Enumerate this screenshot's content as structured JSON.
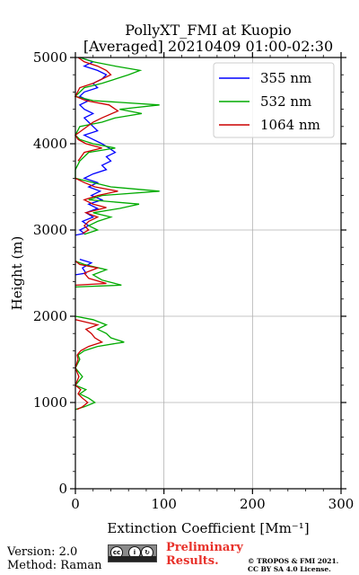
{
  "figure": {
    "title_line1": "PollyXT_FMI at Kuopio",
    "title_line2": "[Averaged] 20210409 01:00-02:30",
    "version_text": "Version: 2.0",
    "method_text": "Method: Raman",
    "preliminary_line1": "Preliminary",
    "preliminary_line2": "Results.",
    "copyright_line1": "© TROPOS & FMI 2021.",
    "copyright_line2": "CC BY SA 4.0 License.",
    "cc_icons": [
      "cc-icon",
      "by-icon",
      "sa-icon"
    ]
  },
  "chart_data": {
    "type": "line",
    "xlabel": "Extinction Coefficient [Mm⁻¹]",
    "ylabel": "Height (m)",
    "xlim": [
      0,
      300
    ],
    "ylim": [
      0,
      5000
    ],
    "xticks": [
      0,
      100,
      200,
      300
    ],
    "yticks": [
      0,
      1000,
      2000,
      3000,
      4000,
      5000
    ],
    "grid": true,
    "legend_position": "top-right",
    "series": [
      {
        "name": "355 nm",
        "color": "#0000ff",
        "points": [
          [
            0,
            2940
          ],
          [
            10,
            2960
          ],
          [
            5,
            3000
          ],
          [
            15,
            3050
          ],
          [
            8,
            3100
          ],
          [
            20,
            3150
          ],
          [
            12,
            3200
          ],
          [
            25,
            3250
          ],
          [
            15,
            3300
          ],
          [
            30,
            3350
          ],
          [
            18,
            3400
          ],
          [
            28,
            3450
          ],
          [
            15,
            3500
          ],
          [
            25,
            3550
          ],
          [
            10,
            3600
          ],
          [
            20,
            3650
          ],
          [
            35,
            3700
          ],
          [
            30,
            3750
          ],
          [
            40,
            3800
          ],
          [
            35,
            3850
          ],
          [
            45,
            3900
          ],
          [
            38,
            3950
          ],
          [
            30,
            4000
          ],
          [
            20,
            4050
          ],
          [
            10,
            4100
          ],
          [
            25,
            4150
          ],
          [
            20,
            4200
          ],
          [
            15,
            4250
          ],
          [
            10,
            4300
          ],
          [
            20,
            4350
          ],
          [
            10,
            4400
          ],
          [
            5,
            4450
          ],
          [
            15,
            4500
          ],
          [
            5,
            4550
          ],
          [
            10,
            4600
          ],
          [
            25,
            4650
          ],
          [
            20,
            4700
          ],
          [
            30,
            4750
          ],
          [
            35,
            4800
          ],
          [
            25,
            4850
          ],
          [
            10,
            4900
          ],
          [
            20,
            4950
          ],
          [
            5,
            5000
          ],
          [
            0,
            2480
          ],
          [
            12,
            2500
          ],
          [
            8,
            2560
          ],
          [
            18,
            2620
          ],
          [
            5,
            2660
          ]
        ]
      },
      {
        "name": "532 nm",
        "color": "#00aa00",
        "points": [
          [
            0,
            920
          ],
          [
            10,
            950
          ],
          [
            22,
            1000
          ],
          [
            15,
            1050
          ],
          [
            5,
            1100
          ],
          [
            12,
            1150
          ],
          [
            0,
            1200
          ],
          [
            8,
            1300
          ],
          [
            0,
            1400
          ],
          [
            5,
            1500
          ],
          [
            3,
            1550
          ],
          [
            10,
            1600
          ],
          [
            25,
            1650
          ],
          [
            55,
            1700
          ],
          [
            40,
            1750
          ],
          [
            35,
            1800
          ],
          [
            25,
            1850
          ],
          [
            35,
            1900
          ],
          [
            20,
            1960
          ],
          [
            0,
            2000
          ],
          [
            0,
            2340
          ],
          [
            52,
            2360
          ],
          [
            30,
            2420
          ],
          [
            20,
            2480
          ],
          [
            35,
            2540
          ],
          [
            10,
            2600
          ],
          [
            0,
            2640
          ],
          [
            10,
            2950
          ],
          [
            25,
            3000
          ],
          [
            15,
            3050
          ],
          [
            25,
            3100
          ],
          [
            40,
            3150
          ],
          [
            20,
            3200
          ],
          [
            50,
            3250
          ],
          [
            72,
            3300
          ],
          [
            15,
            3350
          ],
          [
            30,
            3400
          ],
          [
            95,
            3450
          ],
          [
            40,
            3500
          ],
          [
            20,
            3550
          ],
          [
            0,
            3600
          ],
          [
            0,
            3700
          ],
          [
            5,
            3800
          ],
          [
            15,
            3900
          ],
          [
            45,
            3950
          ],
          [
            20,
            4000
          ],
          [
            5,
            4050
          ],
          [
            0,
            4100
          ],
          [
            5,
            4200
          ],
          [
            30,
            4250
          ],
          [
            45,
            4300
          ],
          [
            75,
            4350
          ],
          [
            95,
            4450
          ],
          [
            50,
            4400
          ],
          [
            20,
            4500
          ],
          [
            0,
            4550
          ],
          [
            10,
            4650
          ],
          [
            30,
            4700
          ],
          [
            45,
            4750
          ],
          [
            60,
            4800
          ],
          [
            73,
            4850
          ],
          [
            45,
            4900
          ],
          [
            20,
            4950
          ],
          [
            5,
            5000
          ]
        ]
      },
      {
        "name": "1064 nm",
        "color": "#cc0000",
        "points": [
          [
            2,
            920
          ],
          [
            8,
            950
          ],
          [
            14,
            1000
          ],
          [
            8,
            1050
          ],
          [
            3,
            1100
          ],
          [
            6,
            1150
          ],
          [
            0,
            1200
          ],
          [
            4,
            1300
          ],
          [
            0,
            1400
          ],
          [
            3,
            1500
          ],
          [
            2,
            1550
          ],
          [
            6,
            1600
          ],
          [
            15,
            1650
          ],
          [
            30,
            1700
          ],
          [
            22,
            1750
          ],
          [
            18,
            1800
          ],
          [
            12,
            1850
          ],
          [
            25,
            1900
          ],
          [
            0,
            1960
          ],
          [
            0,
            2360
          ],
          [
            35,
            2380
          ],
          [
            15,
            2440
          ],
          [
            10,
            2500
          ],
          [
            25,
            2560
          ],
          [
            5,
            2600
          ],
          [
            0,
            2640
          ],
          [
            8,
            2960
          ],
          [
            15,
            3000
          ],
          [
            10,
            3050
          ],
          [
            15,
            3100
          ],
          [
            25,
            3150
          ],
          [
            12,
            3200
          ],
          [
            35,
            3260
          ],
          [
            20,
            3300
          ],
          [
            10,
            3350
          ],
          [
            25,
            3400
          ],
          [
            48,
            3450
          ],
          [
            22,
            3500
          ],
          [
            10,
            3550
          ],
          [
            0,
            3600
          ],
          [
            3,
            3800
          ],
          [
            10,
            3900
          ],
          [
            30,
            3950
          ],
          [
            12,
            4000
          ],
          [
            3,
            4050
          ],
          [
            0,
            4100
          ],
          [
            20,
            4250
          ],
          [
            30,
            4300
          ],
          [
            48,
            4380
          ],
          [
            38,
            4450
          ],
          [
            12,
            4500
          ],
          [
            0,
            4550
          ],
          [
            5,
            4650
          ],
          [
            20,
            4700
          ],
          [
            30,
            4750
          ],
          [
            40,
            4800
          ],
          [
            35,
            4850
          ],
          [
            25,
            4900
          ],
          [
            10,
            4950
          ],
          [
            3,
            5000
          ]
        ]
      }
    ]
  }
}
